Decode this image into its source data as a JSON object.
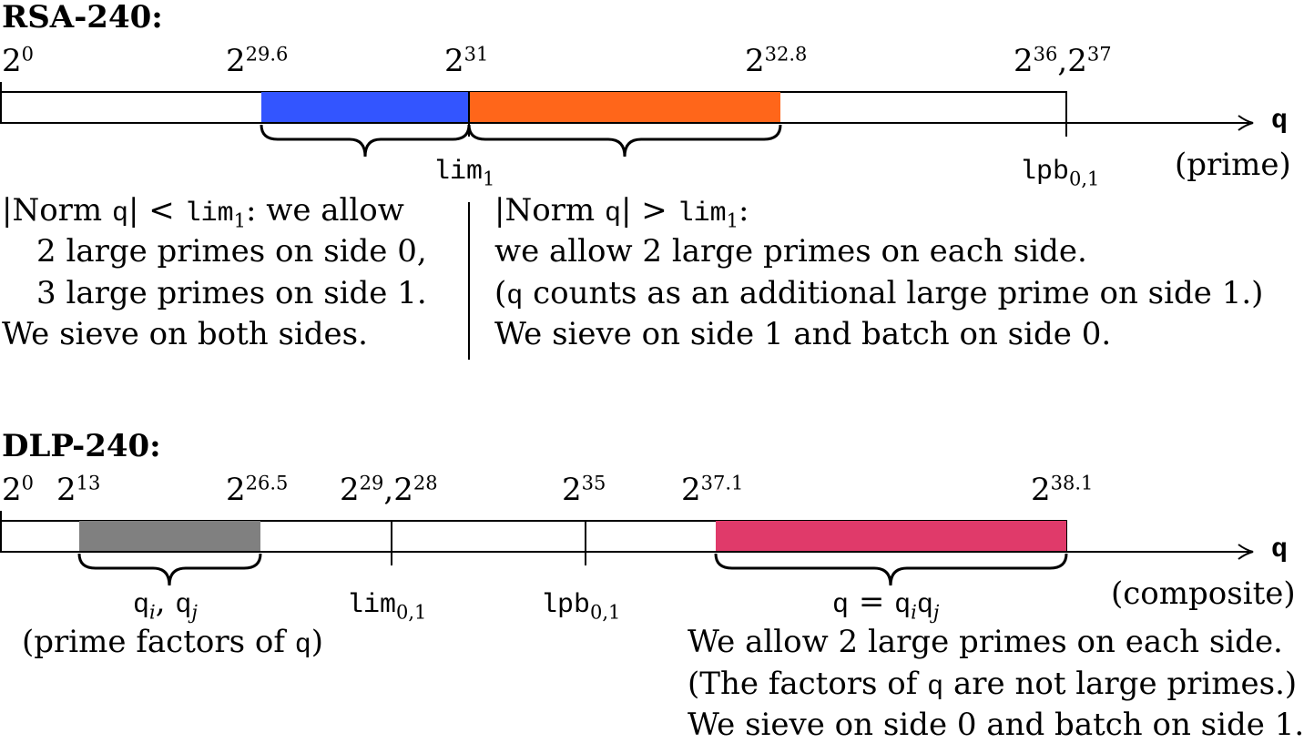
{
  "rsa": {
    "title": "RSA-240:",
    "ticks": [
      {
        "base": "2",
        "exp": "0"
      },
      {
        "base": "2",
        "exp": "29.6"
      },
      {
        "base": "2",
        "exp": "31"
      },
      {
        "base": "2",
        "exp": "32.8"
      },
      {
        "base": "2",
        "exp": "36"
      },
      {
        "base": "2",
        "exp": "37"
      }
    ],
    "axis_symbol": "q",
    "lim_label": "lim",
    "lim_sub": "1",
    "lpb_label": "lpb",
    "lpb_sub": "0,1",
    "kind": "(prime)",
    "colors": {
      "low": "#3355ff",
      "high": "#ff661a"
    },
    "left_text": {
      "l1_pre": "|Norm ",
      "l1_q": "q",
      "l1_mid": "| < ",
      "l1_lim": "lim",
      "l1_sub": "1",
      "l1_post": ": we allow",
      "l2": "2 large primes on side 0,",
      "l3": "3 large primes on side 1.",
      "l4": "We sieve on both sides."
    },
    "right_text": {
      "l1_pre": "|Norm ",
      "l1_q": "q",
      "l1_mid": "| > ",
      "l1_lim": "lim",
      "l1_sub": "1",
      "l1_post": ":",
      "l2": "we allow 2 large primes on each side.",
      "l3_pre": "(",
      "l3_q": "q",
      "l3_post": " counts as an additional large prime on side 1.)",
      "l4": "We sieve on side 1 and batch on side 0."
    }
  },
  "dlp": {
    "title": "DLP-240:",
    "ticks": [
      {
        "base": "2",
        "exp": "0"
      },
      {
        "base": "2",
        "exp": "13"
      },
      {
        "base": "2",
        "exp": "26.5"
      },
      {
        "base": "2",
        "exp": "29"
      },
      {
        "base": "2",
        "exp": "28"
      },
      {
        "base": "2",
        "exp": "35"
      },
      {
        "base": "2",
        "exp": "37.1"
      },
      {
        "base": "2",
        "exp": "38.1"
      }
    ],
    "axis_symbol": "q",
    "lim_label": "lim",
    "lim_sub": "0,1",
    "lpb_label": "lpb",
    "lpb_sub": "0,1",
    "kind": "(composite)",
    "colors": {
      "factors": "#808080",
      "composite": "#e03a6a"
    },
    "factors_label": {
      "q1": "q",
      "s1": "i",
      "sep": ", ",
      "q2": "q",
      "s2": "j"
    },
    "factors_note_pre": "(prime factors of ",
    "factors_note_q": "q",
    "factors_note_post": ")",
    "composite_label": {
      "q": "q",
      "eq": " = ",
      "q1": "q",
      "s1": "i",
      "q2": "q",
      "s2": "j"
    },
    "bottom_text": {
      "l1": "We allow 2 large primes on each side.",
      "l2_pre": "(The factors of ",
      "l2_q": "q",
      "l2_post": " are not large primes.)",
      "l3": "We sieve on side 0 and batch on side 1."
    }
  }
}
